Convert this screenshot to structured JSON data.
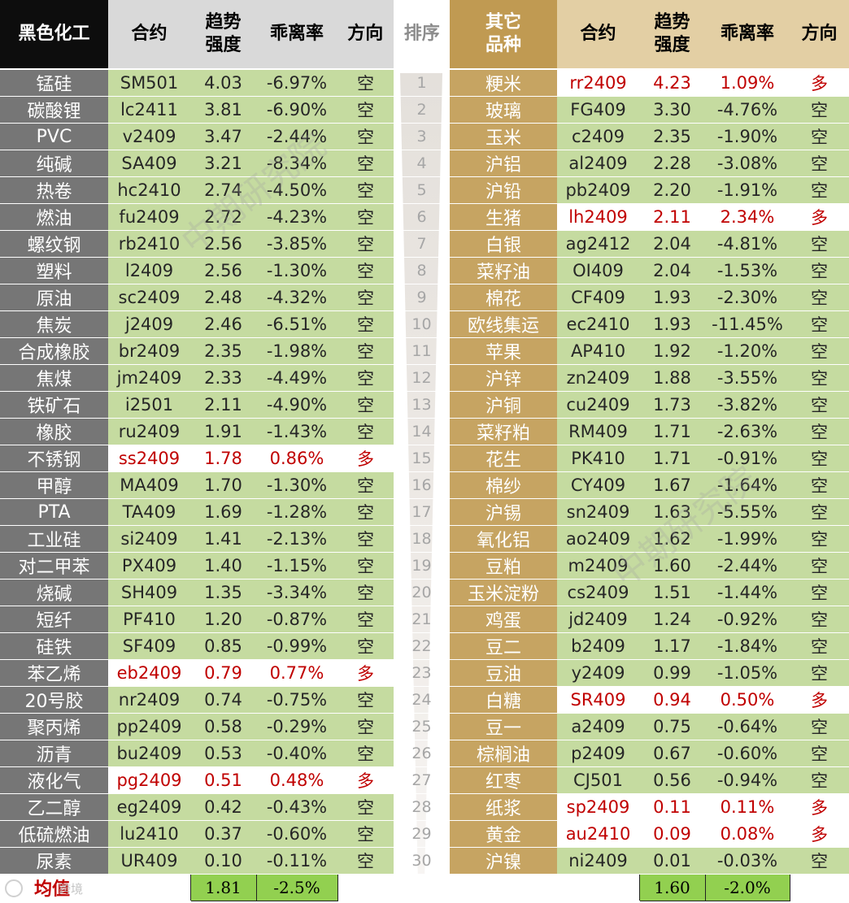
{
  "header": {
    "left_category": "黑色化工",
    "contract": "合约",
    "strength_line1": "趋势",
    "strength_line2": "强度",
    "deviation": "乖离率",
    "direction": "方向",
    "rank": "排序",
    "right_category_line1": "其它",
    "right_category_line2": "品种"
  },
  "left_rows": [
    {
      "name": "锰硅",
      "contract": "SM501",
      "strength": "4.03",
      "deviation": "-6.97%",
      "direction": "空",
      "long": false
    },
    {
      "name": "碳酸锂",
      "contract": "lc2411",
      "strength": "3.81",
      "deviation": "-6.90%",
      "direction": "空",
      "long": false
    },
    {
      "name": "PVC",
      "contract": "v2409",
      "strength": "3.47",
      "deviation": "-2.44%",
      "direction": "空",
      "long": false
    },
    {
      "name": "纯碱",
      "contract": "SA409",
      "strength": "3.21",
      "deviation": "-8.34%",
      "direction": "空",
      "long": false
    },
    {
      "name": "热卷",
      "contract": "hc2410",
      "strength": "2.74",
      "deviation": "-4.50%",
      "direction": "空",
      "long": false
    },
    {
      "name": "燃油",
      "contract": "fu2409",
      "strength": "2.72",
      "deviation": "-4.23%",
      "direction": "空",
      "long": false
    },
    {
      "name": "螺纹钢",
      "contract": "rb2410",
      "strength": "2.56",
      "deviation": "-3.85%",
      "direction": "空",
      "long": false
    },
    {
      "name": "塑料",
      "contract": "l2409",
      "strength": "2.56",
      "deviation": "-1.30%",
      "direction": "空",
      "long": false
    },
    {
      "name": "原油",
      "contract": "sc2409",
      "strength": "2.48",
      "deviation": "-4.32%",
      "direction": "空",
      "long": false
    },
    {
      "name": "焦炭",
      "contract": "j2409",
      "strength": "2.46",
      "deviation": "-6.51%",
      "direction": "空",
      "long": false
    },
    {
      "name": "合成橡胶",
      "contract": "br2409",
      "strength": "2.35",
      "deviation": "-1.98%",
      "direction": "空",
      "long": false
    },
    {
      "name": "焦煤",
      "contract": "jm2409",
      "strength": "2.33",
      "deviation": "-4.49%",
      "direction": "空",
      "long": false
    },
    {
      "name": "铁矿石",
      "contract": "i2501",
      "strength": "2.11",
      "deviation": "-4.90%",
      "direction": "空",
      "long": false
    },
    {
      "name": "橡胶",
      "contract": "ru2409",
      "strength": "1.91",
      "deviation": "-1.43%",
      "direction": "空",
      "long": false
    },
    {
      "name": "不锈钢",
      "contract": "ss2409",
      "strength": "1.78",
      "deviation": "0.86%",
      "direction": "多",
      "long": true
    },
    {
      "name": "甲醇",
      "contract": "MA409",
      "strength": "1.70",
      "deviation": "-1.30%",
      "direction": "空",
      "long": false
    },
    {
      "name": "PTA",
      "contract": "TA409",
      "strength": "1.69",
      "deviation": "-1.28%",
      "direction": "空",
      "long": false
    },
    {
      "name": "工业硅",
      "contract": "si2409",
      "strength": "1.41",
      "deviation": "-2.13%",
      "direction": "空",
      "long": false
    },
    {
      "name": "对二甲苯",
      "contract": "PX409",
      "strength": "1.40",
      "deviation": "-1.15%",
      "direction": "空",
      "long": false
    },
    {
      "name": "烧碱",
      "contract": "SH409",
      "strength": "1.35",
      "deviation": "-3.34%",
      "direction": "空",
      "long": false
    },
    {
      "name": "短纤",
      "contract": "PF410",
      "strength": "1.20",
      "deviation": "-0.87%",
      "direction": "空",
      "long": false
    },
    {
      "name": "硅铁",
      "contract": "SF409",
      "strength": "0.85",
      "deviation": "-0.99%",
      "direction": "空",
      "long": false
    },
    {
      "name": "苯乙烯",
      "contract": "eb2409",
      "strength": "0.79",
      "deviation": "0.77%",
      "direction": "多",
      "long": true
    },
    {
      "name": "20号胶",
      "contract": "nr2409",
      "strength": "0.74",
      "deviation": "-0.75%",
      "direction": "空",
      "long": false
    },
    {
      "name": "聚丙烯",
      "contract": "pp2409",
      "strength": "0.58",
      "deviation": "-0.29%",
      "direction": "空",
      "long": false
    },
    {
      "name": "沥青",
      "contract": "bu2409",
      "strength": "0.53",
      "deviation": "-0.40%",
      "direction": "空",
      "long": false
    },
    {
      "name": "液化气",
      "contract": "pg2409",
      "strength": "0.51",
      "deviation": "0.48%",
      "direction": "多",
      "long": true
    },
    {
      "name": "乙二醇",
      "contract": "eg2409",
      "strength": "0.42",
      "deviation": "-0.43%",
      "direction": "空",
      "long": false
    },
    {
      "name": "低硫燃油",
      "contract": "lu2410",
      "strength": "0.37",
      "deviation": "-0.60%",
      "direction": "空",
      "long": false
    },
    {
      "name": "尿素",
      "contract": "UR409",
      "strength": "0.10",
      "deviation": "-0.11%",
      "direction": "空",
      "long": false
    }
  ],
  "right_rows": [
    {
      "rank": "1",
      "name": "粳米",
      "contract": "rr2409",
      "strength": "4.23",
      "deviation": "1.09%",
      "direction": "多",
      "long": true
    },
    {
      "rank": "2",
      "name": "玻璃",
      "contract": "FG409",
      "strength": "3.30",
      "deviation": "-4.76%",
      "direction": "空",
      "long": false
    },
    {
      "rank": "3",
      "name": "玉米",
      "contract": "c2409",
      "strength": "2.35",
      "deviation": "-1.90%",
      "direction": "空",
      "long": false
    },
    {
      "rank": "4",
      "name": "沪铝",
      "contract": "al2409",
      "strength": "2.28",
      "deviation": "-3.08%",
      "direction": "空",
      "long": false
    },
    {
      "rank": "5",
      "name": "沪铅",
      "contract": "pb2409",
      "strength": "2.20",
      "deviation": "-1.91%",
      "direction": "空",
      "long": false
    },
    {
      "rank": "6",
      "name": "生猪",
      "contract": "lh2409",
      "strength": "2.11",
      "deviation": "2.34%",
      "direction": "多",
      "long": true
    },
    {
      "rank": "7",
      "name": "白银",
      "contract": "ag2412",
      "strength": "2.04",
      "deviation": "-4.81%",
      "direction": "空",
      "long": false
    },
    {
      "rank": "8",
      "name": "菜籽油",
      "contract": "OI409",
      "strength": "2.04",
      "deviation": "-1.53%",
      "direction": "空",
      "long": false
    },
    {
      "rank": "9",
      "name": "棉花",
      "contract": "CF409",
      "strength": "1.93",
      "deviation": "-2.30%",
      "direction": "空",
      "long": false
    },
    {
      "rank": "10",
      "name": "欧线集运",
      "contract": "ec2410",
      "strength": "1.93",
      "deviation": "-11.45%",
      "direction": "空",
      "long": false
    },
    {
      "rank": "11",
      "name": "苹果",
      "contract": "AP410",
      "strength": "1.92",
      "deviation": "-1.20%",
      "direction": "空",
      "long": false
    },
    {
      "rank": "12",
      "name": "沪锌",
      "contract": "zn2409",
      "strength": "1.88",
      "deviation": "-3.55%",
      "direction": "空",
      "long": false
    },
    {
      "rank": "13",
      "name": "沪铜",
      "contract": "cu2409",
      "strength": "1.73",
      "deviation": "-3.82%",
      "direction": "空",
      "long": false
    },
    {
      "rank": "14",
      "name": "菜籽粕",
      "contract": "RM409",
      "strength": "1.71",
      "deviation": "-2.63%",
      "direction": "空",
      "long": false
    },
    {
      "rank": "15",
      "name": "花生",
      "contract": "PK410",
      "strength": "1.71",
      "deviation": "-0.91%",
      "direction": "空",
      "long": false
    },
    {
      "rank": "16",
      "name": "棉纱",
      "contract": "CY409",
      "strength": "1.67",
      "deviation": "-1.64%",
      "direction": "空",
      "long": false
    },
    {
      "rank": "17",
      "name": "沪锡",
      "contract": "sn2409",
      "strength": "1.63",
      "deviation": "-5.55%",
      "direction": "空",
      "long": false
    },
    {
      "rank": "18",
      "name": "氧化铝",
      "contract": "ao2409",
      "strength": "1.62",
      "deviation": "-1.99%",
      "direction": "空",
      "long": false
    },
    {
      "rank": "19",
      "name": "豆粕",
      "contract": "m2409",
      "strength": "1.60",
      "deviation": "-2.44%",
      "direction": "空",
      "long": false
    },
    {
      "rank": "20",
      "name": "玉米淀粉",
      "contract": "cs2409",
      "strength": "1.51",
      "deviation": "-1.44%",
      "direction": "空",
      "long": false
    },
    {
      "rank": "21",
      "name": "鸡蛋",
      "contract": "jd2409",
      "strength": "1.24",
      "deviation": "-0.92%",
      "direction": "空",
      "long": false
    },
    {
      "rank": "22",
      "name": "豆二",
      "contract": "b2409",
      "strength": "1.17",
      "deviation": "-1.84%",
      "direction": "空",
      "long": false
    },
    {
      "rank": "23",
      "name": "豆油",
      "contract": "y2409",
      "strength": "0.99",
      "deviation": "-1.05%",
      "direction": "空",
      "long": false
    },
    {
      "rank": "24",
      "name": "白糖",
      "contract": "SR409",
      "strength": "0.94",
      "deviation": "0.50%",
      "direction": "多",
      "long": true
    },
    {
      "rank": "25",
      "name": "豆一",
      "contract": "a2409",
      "strength": "0.75",
      "deviation": "-0.64%",
      "direction": "空",
      "long": false
    },
    {
      "rank": "26",
      "name": "棕榈油",
      "contract": "p2409",
      "strength": "0.67",
      "deviation": "-0.60%",
      "direction": "空",
      "long": false
    },
    {
      "rank": "27",
      "name": "红枣",
      "contract": "CJ501",
      "strength": "0.56",
      "deviation": "-0.94%",
      "direction": "空",
      "long": false
    },
    {
      "rank": "28",
      "name": "纸浆",
      "contract": "sp2409",
      "strength": "0.11",
      "deviation": "0.11%",
      "direction": "多",
      "long": true
    },
    {
      "rank": "29",
      "name": "黄金",
      "contract": "au2410",
      "strength": "0.09",
      "deviation": "0.08%",
      "direction": "多",
      "long": true
    },
    {
      "rank": "30",
      "name": "沪镍",
      "contract": "ni2409",
      "strength": "0.01",
      "deviation": "-0.03%",
      "direction": "空",
      "long": false
    }
  ],
  "average": {
    "label": "均值",
    "left_strength": "1.81",
    "left_deviation": "-2.5%",
    "right_strength": "1.60",
    "right_deviation": "-2.0%"
  },
  "watermark": "中期研究院",
  "logo_text": "跨境",
  "colors": {
    "long_text": "#c00000",
    "short_bg": "#c5dba0",
    "left_name_bg": "#767676",
    "right_name_bg": "#c6a462",
    "avg_bg": "#92d050"
  }
}
